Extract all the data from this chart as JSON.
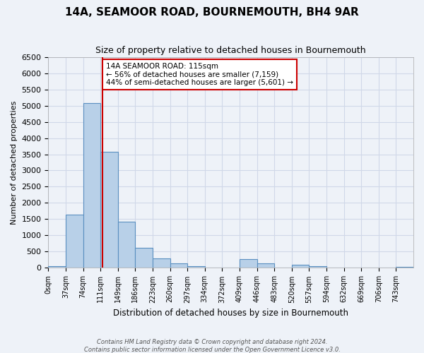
{
  "title": "14A, SEAMOOR ROAD, BOURNEMOUTH, BH4 9AR",
  "subtitle": "Size of property relative to detached houses in Bournemouth",
  "xlabel": "Distribution of detached houses by size in Bournemouth",
  "ylabel": "Number of detached properties",
  "footnote1": "Contains HM Land Registry data © Crown copyright and database right 2024.",
  "footnote2": "Contains public sector information licensed under the Open Government Licence v3.0.",
  "bin_labels": [
    "0sqm",
    "37sqm",
    "74sqm",
    "111sqm",
    "149sqm",
    "186sqm",
    "223sqm",
    "260sqm",
    "297sqm",
    "334sqm",
    "372sqm",
    "409sqm",
    "446sqm",
    "483sqm",
    "520sqm",
    "557sqm",
    "594sqm",
    "632sqm",
    "669sqm",
    "706sqm",
    "743sqm"
  ],
  "bar_values": [
    60,
    1650,
    5080,
    3580,
    1430,
    610,
    300,
    150,
    60,
    0,
    0,
    280,
    130,
    0,
    90,
    60,
    0,
    0,
    0,
    0,
    40
  ],
  "bar_color": "#b8d0e8",
  "bar_edgecolor": "#5a8fc0",
  "bar_linewidth": 0.8,
  "vline_x": 115,
  "vline_color": "#cc0000",
  "vline_linewidth": 1.5,
  "ylim": [
    0,
    6500
  ],
  "yticks": [
    0,
    500,
    1000,
    1500,
    2000,
    2500,
    3000,
    3500,
    4000,
    4500,
    5000,
    5500,
    6000,
    6500
  ],
  "annotation_text": "14A SEAMOOR ROAD: 115sqm\n← 56% of detached houses are smaller (7,159)\n44% of semi-detached houses are larger (5,601) →",
  "annotation_box_color": "#ffffff",
  "annotation_box_edgecolor": "#cc0000",
  "grid_color": "#d0d8e8",
  "bg_color": "#eef2f8",
  "plot_bg_color": "#eef2f8",
  "bin_width": 37
}
